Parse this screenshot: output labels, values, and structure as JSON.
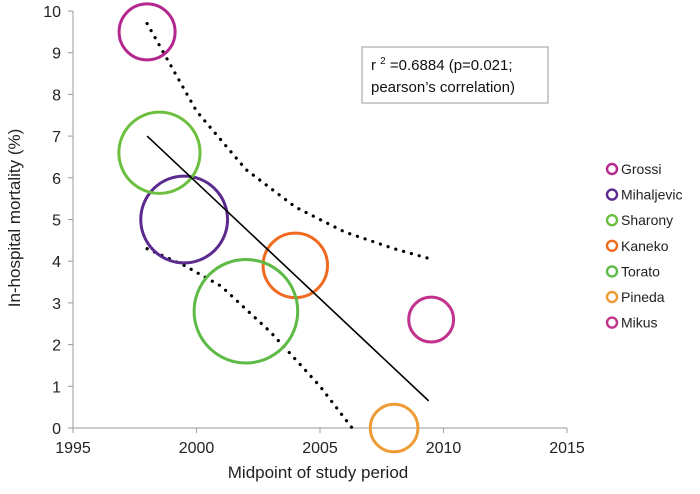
{
  "chart_data": {
    "type": "scatter",
    "xlabel": "Midpoint of study period",
    "ylabel": "In-hospital mortality (%)",
    "xlim": [
      1995,
      2015
    ],
    "ylim": [
      0,
      10
    ],
    "xticks": [
      "1995",
      "2000",
      "2005",
      "2010",
      "2015"
    ],
    "yticks": [
      "0",
      "1",
      "2",
      "3",
      "4",
      "5",
      "6",
      "7",
      "8",
      "9",
      "10"
    ],
    "grid": false,
    "legend_position": "right",
    "annotation": {
      "line1_prefix": "r",
      "line1_sup": "2",
      "line1_rest": "=0.6884 (p=0.021;",
      "line2": "pearson’s correlation)"
    },
    "series": [
      {
        "name": "Grossi",
        "x": 1998,
        "y": 9.5,
        "color": "#b4278f",
        "bubble_size": 1.0
      },
      {
        "name": "Mihaljevic",
        "x": 1999.5,
        "y": 5.0,
        "color": "#5a2a8f",
        "bubble_size": 1.55
      },
      {
        "name": "Sharony",
        "x": 1998.5,
        "y": 6.6,
        "color": "#6cbf3f",
        "bubble_size": 1.45
      },
      {
        "name": "Kaneko",
        "x": 2004,
        "y": 3.9,
        "color": "#f06a1f",
        "bubble_size": 1.15
      },
      {
        "name": "Torato",
        "x": 2002,
        "y": 2.8,
        "color": "#5cba45",
        "bubble_size": 1.85
      },
      {
        "name": "Pineda",
        "x": 2008,
        "y": 0.0,
        "color": "#ee9a35",
        "bubble_size": 0.85
      },
      {
        "name": "Mikus",
        "x": 2009.5,
        "y": 2.6,
        "color": "#c2338e",
        "bubble_size": 0.8
      }
    ],
    "trend_line": {
      "style": "solid",
      "color": "#000000",
      "x": [
        1998,
        2009.4
      ],
      "y": [
        7.0,
        0.65
      ]
    },
    "confidence_bands": [
      {
        "style": "dotted",
        "color": "#000000",
        "x": [
          1998,
          2000,
          2002,
          2004,
          2006,
          2008,
          2009.5
        ],
        "y": [
          9.7,
          7.6,
          6.2,
          5.3,
          4.7,
          4.3,
          4.05
        ]
      },
      {
        "style": "dotted",
        "color": "#000000",
        "x": [
          1998,
          1999.5,
          2001,
          2003,
          2005,
          2006.3
        ],
        "y": [
          4.3,
          3.9,
          3.4,
          2.3,
          1.0,
          0.0
        ]
      }
    ]
  }
}
